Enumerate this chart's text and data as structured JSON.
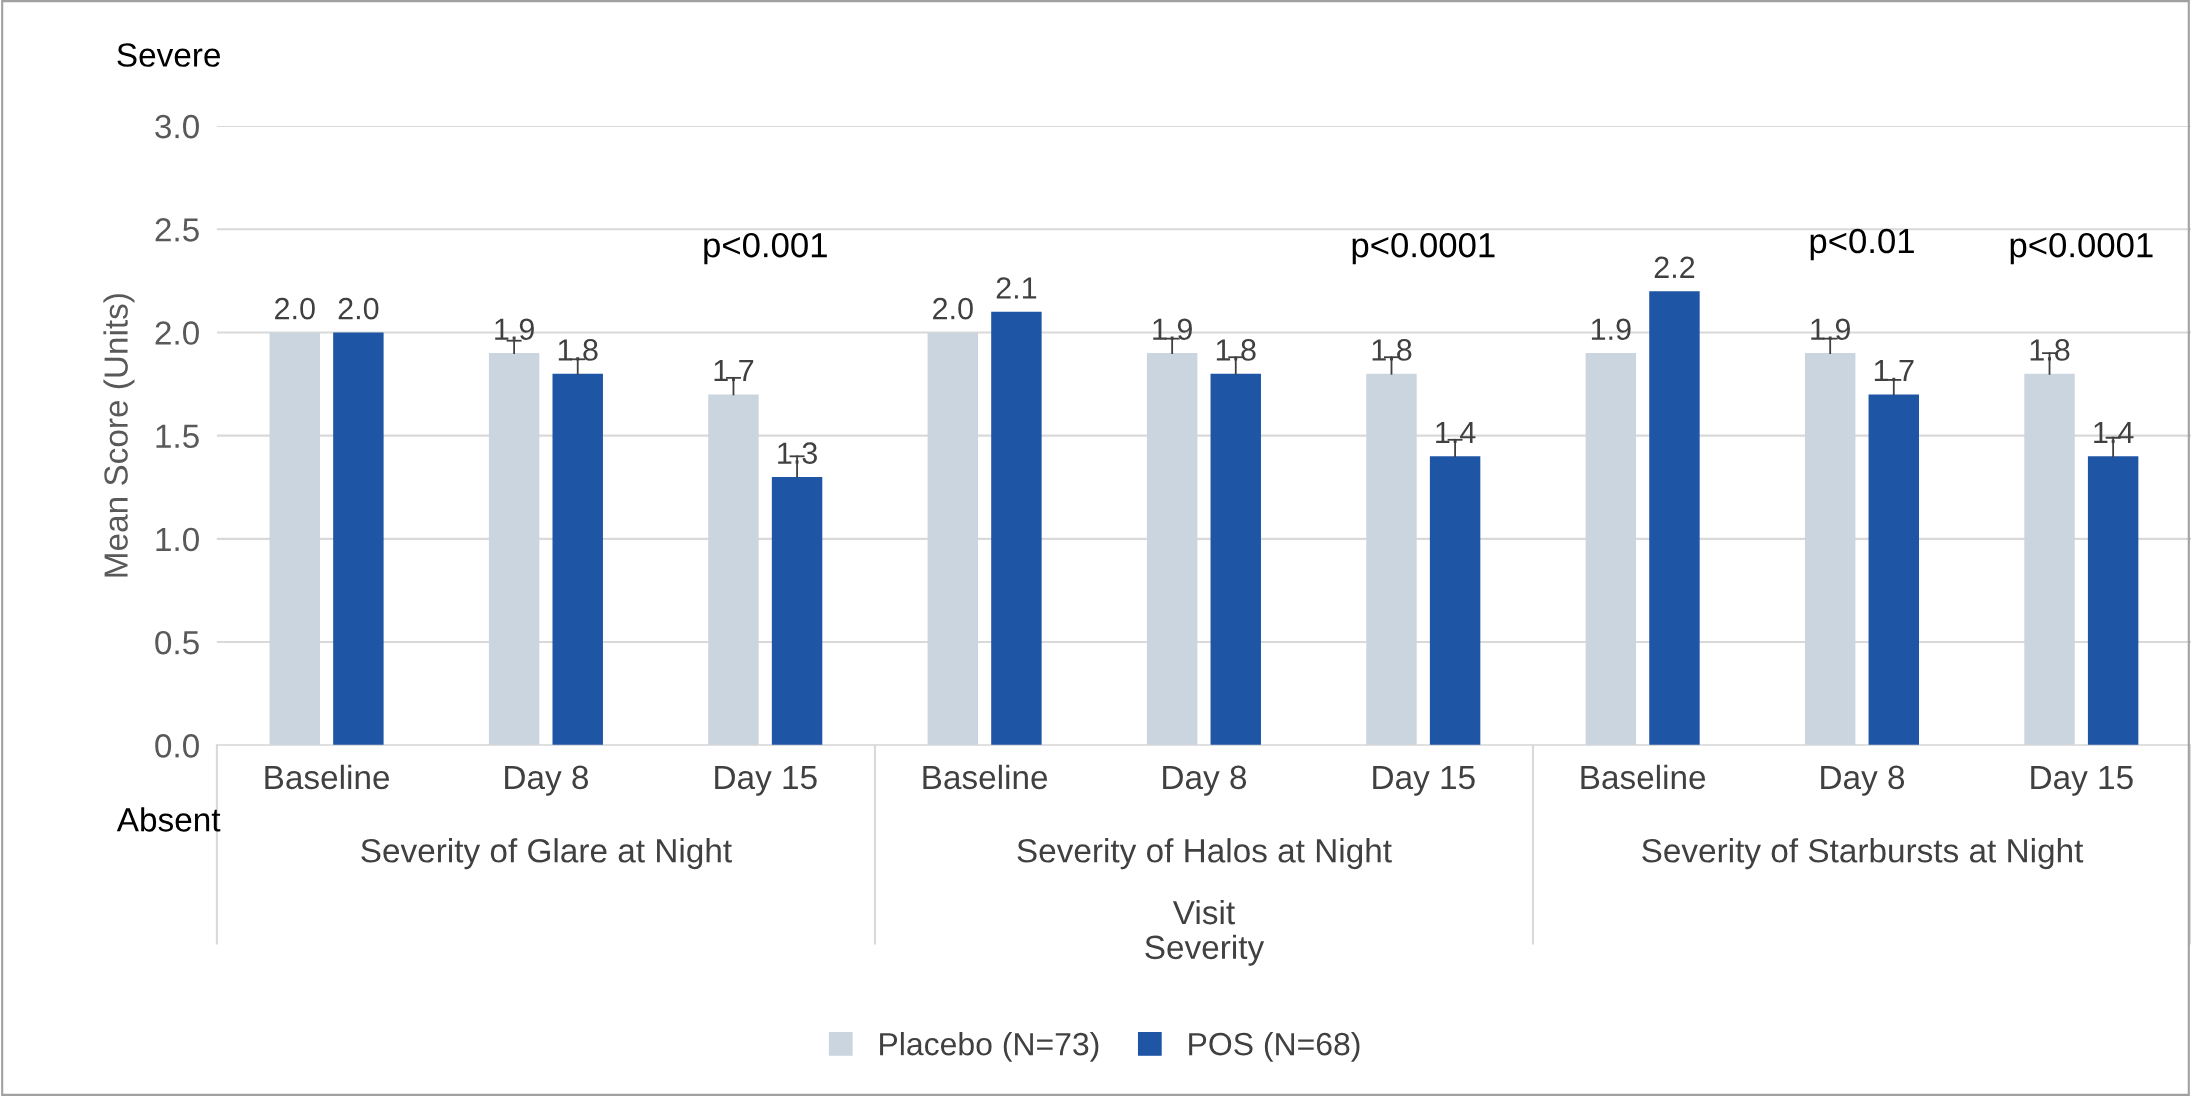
{
  "chart_data": {
    "type": "bar",
    "xlabel": "Visit\nSeverity",
    "ylabel": "Mean Score (Units)",
    "categories": [
      "Baseline",
      "Day 8",
      "Day 15",
      "Baseline",
      "Day 8",
      "Day 15",
      "Baseline",
      "Day 8",
      "Day 15"
    ],
    "series": [
      {
        "name": "Placebo (N=73)",
        "color": "#cbd5df",
        "values": [
          2.0,
          1.9,
          1.7,
          2.0,
          1.9,
          1.8,
          1.9,
          1.9,
          1.8
        ],
        "value_labels": [
          "2.0",
          "1.9",
          "1.7",
          "2.0",
          "1.9",
          "1.8",
          "1.9",
          "1.9",
          "1.8"
        ],
        "errors": [
          null,
          [
            1.9,
            1.96
          ],
          [
            1.7,
            1.78
          ],
          null,
          [
            1.9,
            1.97
          ],
          [
            1.8,
            1.88
          ],
          null,
          [
            1.9,
            1.97
          ],
          [
            1.8,
            1.9
          ]
        ]
      },
      {
        "name": "POS (N=68)",
        "color": "#1f55a5",
        "values": [
          2.0,
          1.8,
          1.3,
          2.1,
          1.8,
          1.4,
          2.2,
          1.7,
          1.4
        ],
        "value_labels": [
          "2.0",
          "1.8",
          "1.3",
          "2.1",
          "1.8",
          "1.4",
          "2.2",
          "1.7",
          "1.4"
        ],
        "errors": [
          null,
          [
            1.8,
            1.87
          ],
          [
            1.3,
            1.4
          ],
          null,
          [
            1.8,
            1.88
          ],
          [
            1.4,
            1.48
          ],
          null,
          [
            1.7,
            1.77
          ],
          [
            1.4,
            1.49
          ]
        ]
      }
    ],
    "ylim": [
      0,
      3
    ],
    "yticks": [
      {
        "value": 0,
        "label": "0.0"
      },
      {
        "value": 0.5,
        "label": "0.5"
      },
      {
        "value": 1,
        "label": "1.0"
      },
      {
        "value": 1.5,
        "label": "1.5"
      },
      {
        "value": 2,
        "label": "2.0"
      },
      {
        "value": 2.5,
        "label": "2.5"
      },
      {
        "value": 3,
        "label": "3.0"
      }
    ],
    "grid": "y",
    "legend": "bottom",
    "annotations": [
      "Severe",
      "Absent",
      "Severity of Glare at Night",
      "Severity of Halos at Night",
      "Severity of Starbursts at Night",
      "p<0.001",
      "p<0.0001",
      "p<0.01",
      "p<0.0001"
    ]
  }
}
